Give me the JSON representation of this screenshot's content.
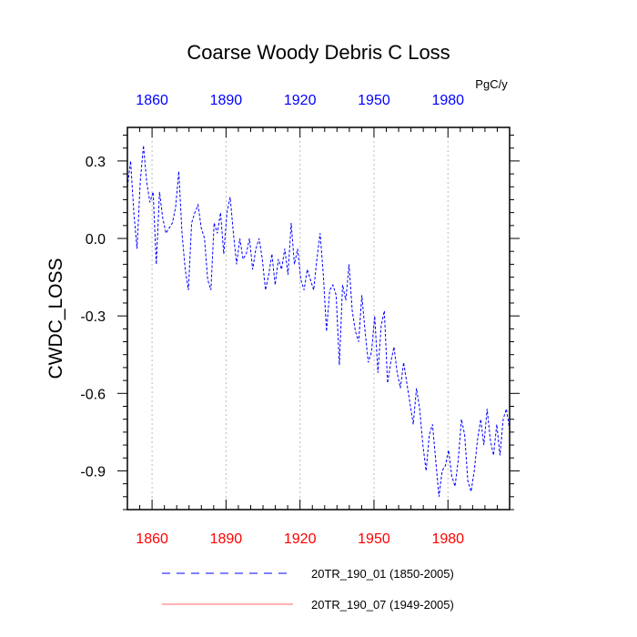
{
  "chart_data": {
    "type": "line",
    "title": "Coarse Woody Debris C Loss",
    "ylabel": "CWDC_LOSS",
    "units": "PgC/y",
    "xlim": [
      1850,
      2005
    ],
    "ylim": [
      -1.05,
      0.43
    ],
    "x_ticks": [
      1860,
      1890,
      1920,
      1950,
      1980
    ],
    "y_ticks": [
      0.3,
      0.0,
      -0.3,
      -0.6,
      -0.9
    ],
    "y_tick_labels": [
      "0.3",
      "0.0",
      "-0.3",
      "-0.6",
      "-0.9"
    ],
    "x_minor_step": 5,
    "y_minor_step": 0.05,
    "grid": "vertical dotted at major x ticks",
    "colors": {
      "top_axis_labels": "#0000ff",
      "bottom_axis_labels": "#ff0000",
      "series_1": "#0000ff",
      "series_2": "#ff6666"
    },
    "series": [
      {
        "name": "20TR_190_01 (1850-2005)",
        "style": "dashed",
        "color": "#0000ff",
        "start_year": 1850,
        "values": [
          0.2,
          0.3,
          0.1,
          -0.04,
          0.22,
          0.36,
          0.22,
          0.14,
          0.18,
          -0.1,
          0.18,
          0.08,
          0.02,
          0.04,
          0.06,
          0.12,
          0.26,
          0.02,
          -0.12,
          -0.2,
          0.06,
          0.1,
          0.13,
          0.04,
          0.0,
          -0.16,
          -0.2,
          0.06,
          0.02,
          0.1,
          -0.06,
          0.1,
          0.16,
          0.02,
          -0.1,
          0.0,
          -0.08,
          -0.06,
          0.0,
          -0.12,
          -0.04,
          0.0,
          -0.08,
          -0.2,
          -0.14,
          -0.06,
          -0.18,
          -0.08,
          -0.12,
          -0.04,
          -0.14,
          0.06,
          -0.1,
          -0.04,
          -0.16,
          -0.2,
          -0.12,
          -0.16,
          -0.2,
          -0.08,
          0.02,
          -0.14,
          -0.36,
          -0.2,
          -0.18,
          -0.22,
          -0.49,
          -0.18,
          -0.24,
          -0.1,
          -0.28,
          -0.36,
          -0.4,
          -0.22,
          -0.36,
          -0.48,
          -0.44,
          -0.3,
          -0.52,
          -0.34,
          -0.28,
          -0.56,
          -0.48,
          -0.42,
          -0.52,
          -0.58,
          -0.48,
          -0.56,
          -0.64,
          -0.72,
          -0.58,
          -0.66,
          -0.8,
          -0.9,
          -0.76,
          -0.72,
          -0.86,
          -1.0,
          -0.9,
          -0.88,
          -0.82,
          -0.92,
          -0.96,
          -0.86,
          -0.7,
          -0.76,
          -0.94,
          -0.98,
          -0.9,
          -0.78,
          -0.7,
          -0.8,
          -0.66,
          -0.78,
          -0.84,
          -0.72,
          -0.84,
          -0.7,
          -0.66,
          -0.74
        ]
      },
      {
        "name": "20TR_190_07 (1949-2005)",
        "style": "solid",
        "color": "#ff6666",
        "values": []
      }
    ]
  }
}
